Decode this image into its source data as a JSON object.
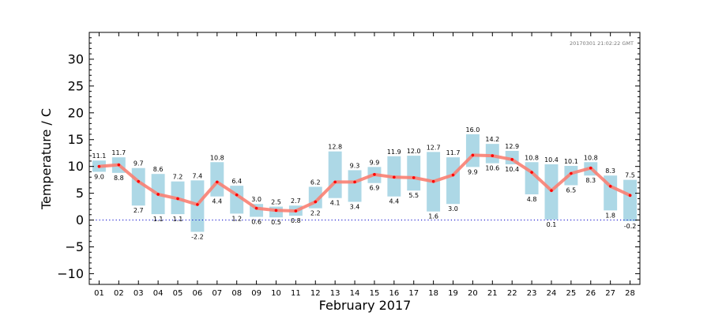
{
  "chart_data": {
    "type": "bar",
    "xlabel": "February 2017",
    "ylabel": "Temperature / C",
    "timestamp": "20170301 21:02:22 GMT",
    "ylim": [
      -12,
      35
    ],
    "yticks": [
      -10,
      -5,
      0,
      5,
      10,
      15,
      20,
      25,
      30
    ],
    "ytick_labels": [
      "−10",
      "−5",
      "0",
      "5",
      "10",
      "15",
      "20",
      "25",
      "30"
    ],
    "zero_line": 0,
    "categories": [
      "01",
      "02",
      "03",
      "04",
      "05",
      "06",
      "07",
      "08",
      "09",
      "10",
      "11",
      "12",
      "13",
      "14",
      "15",
      "16",
      "17",
      "18",
      "19",
      "20",
      "21",
      "22",
      "23",
      "24",
      "25",
      "26",
      "27",
      "28"
    ],
    "max_labels": [
      "11.1",
      "11.7",
      "9.7",
      "8.6",
      "7.2",
      "7.4",
      "10.8",
      "6.4",
      "3.0",
      "2.5",
      "2.7",
      "6.2",
      "12.8",
      "9.3",
      "9.9",
      "11.9",
      "12.0",
      "12.7",
      "11.7",
      "16.0",
      "14.2",
      "12.9",
      "10.8",
      "10.4",
      "10.1",
      "10.8",
      "8.3",
      "7.5"
    ],
    "min_labels": [
      "9.0",
      "8.8",
      "2.7",
      "1.1",
      "1.1",
      "-2.2",
      "4.4",
      "1.2",
      "0.6",
      "0.5",
      "0.8",
      "2.2",
      "4.1",
      "3.4",
      "6.9",
      "4.4",
      "5.5",
      "1.6",
      "3.0",
      "9.9",
      "10.6",
      "10.4",
      "4.8",
      "0.1",
      "6.5",
      "8.3",
      "1.8",
      "-0.2"
    ],
    "series": [
      {
        "name": "max",
        "values": [
          11.1,
          11.7,
          9.7,
          8.6,
          7.2,
          7.4,
          10.8,
          6.4,
          3.0,
          2.5,
          2.7,
          6.2,
          12.8,
          9.3,
          9.9,
          11.9,
          12.0,
          12.7,
          11.7,
          16.0,
          14.2,
          12.9,
          10.8,
          10.4,
          10.1,
          10.8,
          8.3,
          7.5
        ]
      },
      {
        "name": "min",
        "values": [
          9.0,
          8.8,
          2.7,
          1.1,
          1.1,
          -2.2,
          4.4,
          1.2,
          0.6,
          0.5,
          0.8,
          2.2,
          4.1,
          3.4,
          6.9,
          4.4,
          5.5,
          1.6,
          3.0,
          9.9,
          10.6,
          10.4,
          4.8,
          0.1,
          6.5,
          8.3,
          1.8,
          -0.2
        ]
      },
      {
        "name": "mean",
        "values": [
          10.0,
          10.3,
          7.2,
          4.8,
          4.0,
          2.9,
          7.1,
          4.7,
          2.2,
          1.8,
          1.7,
          3.4,
          7.1,
          7.1,
          8.5,
          8.0,
          7.9,
          7.2,
          8.4,
          12.1,
          12.0,
          11.3,
          8.9,
          5.5,
          8.7,
          9.7,
          6.3,
          4.6
        ]
      }
    ],
    "grid": false,
    "colors": {
      "range_bar": "#add8e6",
      "mean_line": "#fa8072",
      "mean_point": "#ff0000",
      "zero_line": "#0000cc"
    }
  }
}
